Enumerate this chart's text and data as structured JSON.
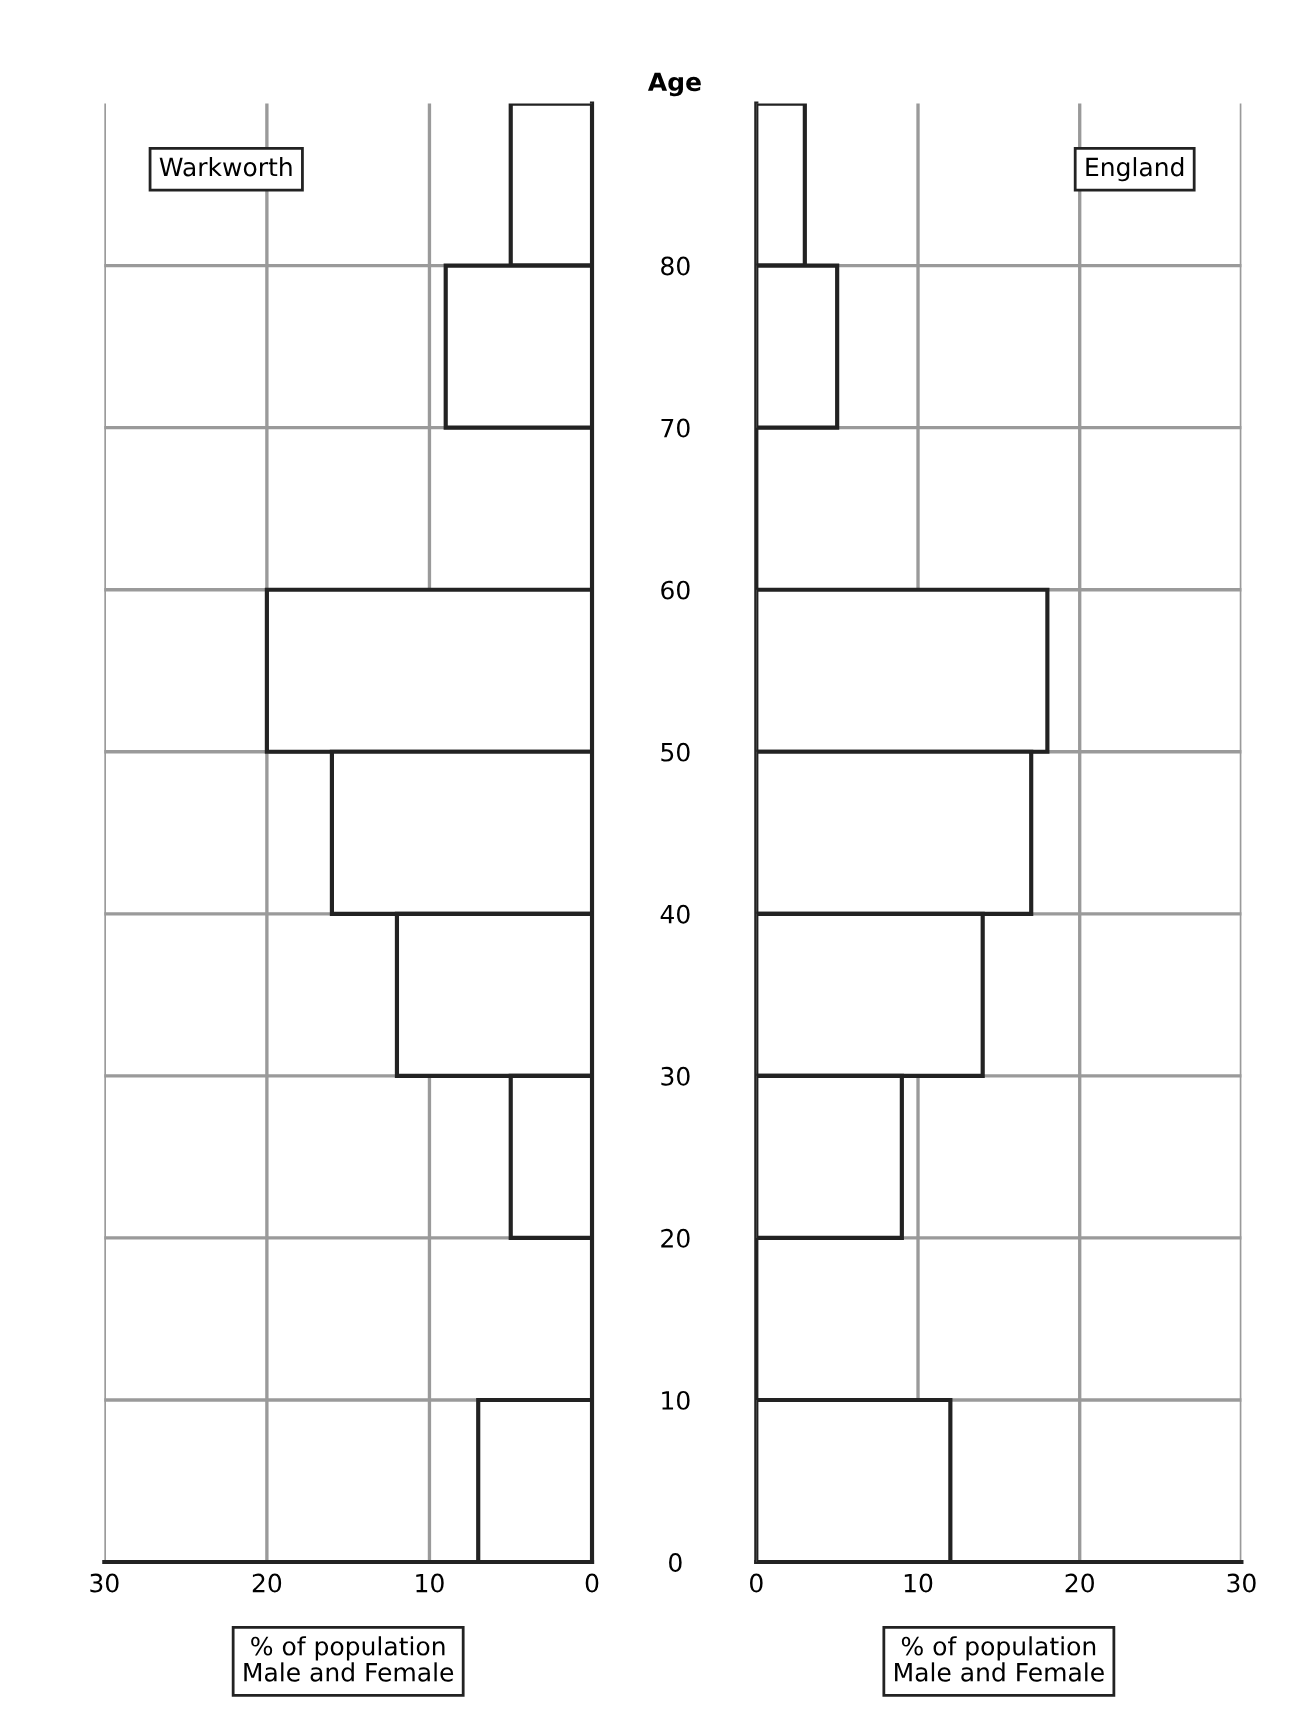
{
  "chart_data": [
    {
      "type": "bar",
      "orientation": "horizontal",
      "title": "Warkworth",
      "xlabel": "% of population\nMale and Female",
      "ylabel": "Age",
      "x": [
        85,
        75,
        65,
        55,
        45,
        35,
        25,
        15,
        5
      ],
      "values": [
        5,
        9,
        null,
        20,
        16,
        12,
        5,
        null,
        7
      ],
      "color": "#ffffff",
      "xlim": [
        30,
        0
      ],
      "xticks": [
        30,
        20,
        10,
        0
      ],
      "ylim": [
        0,
        90
      ],
      "yticks": [
        0,
        10,
        20,
        30,
        40,
        50,
        60,
        70,
        80
      ],
      "grid": true
    },
    {
      "type": "bar",
      "orientation": "horizontal",
      "title": "England",
      "xlabel": "% of population\nMale and Female",
      "x": [
        85,
        75,
        65,
        55,
        45,
        35,
        25,
        15,
        5
      ],
      "values": [
        3,
        5,
        null,
        18,
        17,
        14,
        9,
        null,
        12
      ],
      "color": "#ffffff",
      "xlim": [
        0,
        30
      ],
      "xticks": [
        0,
        10,
        20,
        30
      ],
      "ylim": [
        0,
        90
      ],
      "yticks": [
        0,
        10,
        20,
        30,
        40,
        50,
        60,
        70,
        80
      ],
      "grid": true,
      "tick_labels": "x"
    }
  ]
}
